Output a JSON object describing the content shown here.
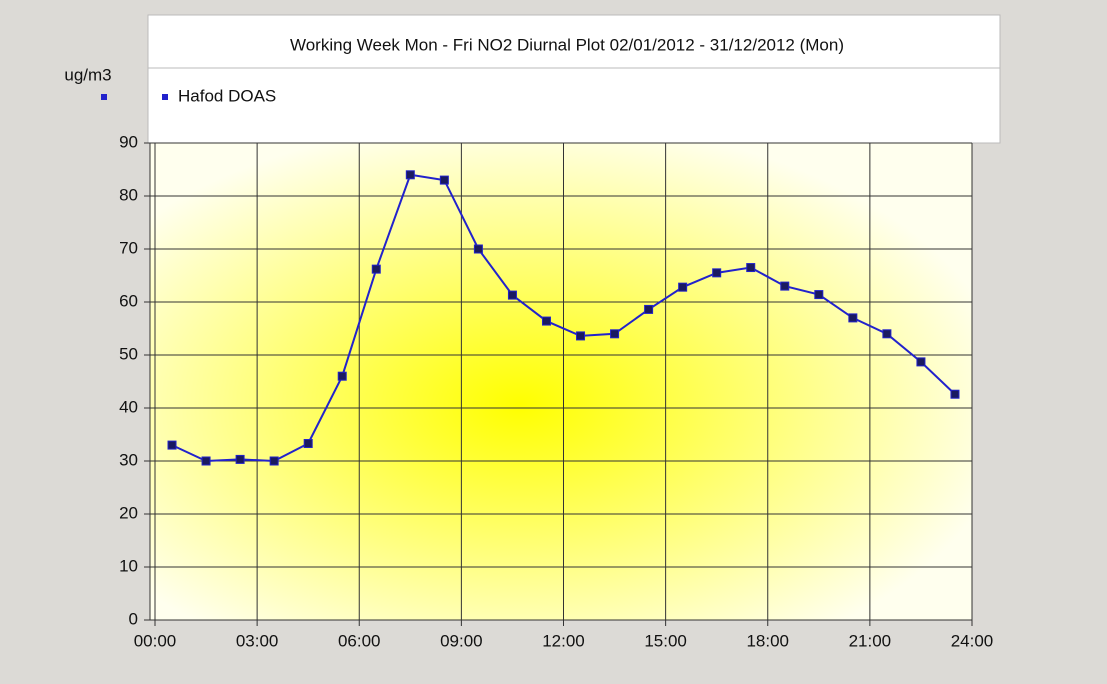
{
  "chart_data": {
    "type": "line",
    "title": "Working Week Mon - Fri NO2 Diurnal Plot    02/01/2012 - 31/12/2012 (Mon)",
    "y_label": "ug/m3",
    "x": [
      0.5,
      1.5,
      2.5,
      3.5,
      4.5,
      5.5,
      6.5,
      7.5,
      8.5,
      9.5,
      10.5,
      11.5,
      12.5,
      13.5,
      14.5,
      15.5,
      16.5,
      17.5,
      18.5,
      19.5,
      20.5,
      21.5,
      22.5,
      23.5
    ],
    "series": [
      {
        "name": "Hafod DOAS",
        "color": "#2222cc",
        "values": [
          33,
          30,
          30.3,
          30,
          33.3,
          46,
          66.2,
          84,
          83,
          70,
          61.3,
          56.4,
          53.6,
          54,
          58.6,
          62.8,
          65.5,
          66.5,
          63,
          61.4,
          57,
          54,
          48.7,
          42.6
        ]
      }
    ],
    "xlim": [
      0,
      24
    ],
    "xticks": [
      {
        "value": 0,
        "label": "00:00"
      },
      {
        "value": 3,
        "label": "03:00"
      },
      {
        "value": 6,
        "label": "06:00"
      },
      {
        "value": 9,
        "label": "09:00"
      },
      {
        "value": 12,
        "label": "12:00"
      },
      {
        "value": 15,
        "label": "15:00"
      },
      {
        "value": 18,
        "label": "18:00"
      },
      {
        "value": 21,
        "label": "21:00"
      },
      {
        "value": 24,
        "label": "24:00"
      }
    ],
    "ylim": [
      0,
      90
    ],
    "yticks": [
      0,
      10,
      20,
      30,
      40,
      50,
      60,
      70,
      80,
      90
    ],
    "grid": true,
    "legend": "top-left"
  }
}
